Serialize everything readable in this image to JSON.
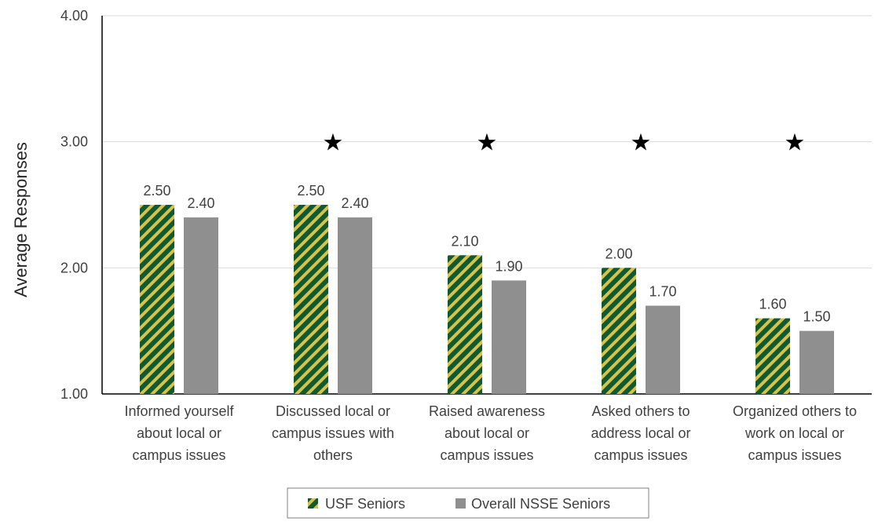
{
  "chart_data": {
    "type": "bar",
    "title": "",
    "xlabel": "",
    "ylabel": "Average Responses",
    "ylim": [
      1,
      4
    ],
    "yticks": [
      "1.00",
      "2.00",
      "3.00",
      "4.00"
    ],
    "grid": true,
    "legend_position": "bottom",
    "categories": [
      [
        "Informed yourself",
        "about local or",
        "campus issues"
      ],
      [
        "Discussed local or",
        "campus issues with",
        "others"
      ],
      [
        "Raised awareness",
        "about local or",
        "campus issues"
      ],
      [
        "Asked others to",
        "address local or",
        "campus issues"
      ],
      [
        "Organized others to",
        "work on local or",
        "campus issues"
      ]
    ],
    "series": [
      {
        "name": "USF Seniors",
        "values": [
          2.5,
          2.5,
          2.1,
          2.0,
          1.6
        ],
        "labels": [
          "2.50",
          "2.50",
          "2.10",
          "2.00",
          "1.60"
        ],
        "pattern": "diagonal-stripes",
        "colors": [
          "#0f5a30",
          "#d8c24a"
        ]
      },
      {
        "name": "Overall NSSE Seniors",
        "values": [
          2.4,
          2.4,
          1.9,
          1.7,
          1.5
        ],
        "labels": [
          "2.40",
          "2.40",
          "1.90",
          "1.70",
          "1.50"
        ],
        "color": "#8f8f8f"
      }
    ],
    "significance_markers": [
      false,
      true,
      true,
      true,
      true
    ],
    "marker_symbol": "★",
    "marker_value": 3.0
  }
}
